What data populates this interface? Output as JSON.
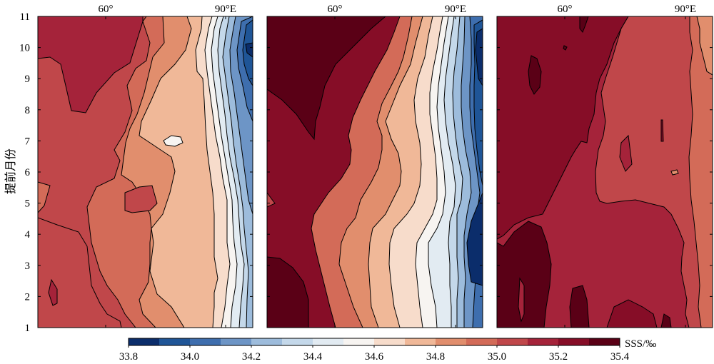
{
  "chart_data": {
    "type": "heatmap",
    "ylabel": "提前月份",
    "y_ticks": [
      1,
      2,
      3,
      4,
      5,
      6,
      7,
      8,
      9,
      10,
      11
    ],
    "ylim": [
      1,
      11
    ],
    "panels": [
      {
        "x_tick_labels": [
          "60°",
          "90°E"
        ]
      },
      {
        "x_tick_labels": [
          "60°",
          "90°E"
        ]
      },
      {
        "x_tick_labels": [
          "60°",
          "90°E"
        ]
      }
    ],
    "colorbar": {
      "label": "SSS/‰",
      "ticks": [
        "33.8",
        "34.0",
        "34.2",
        "34.4",
        "34.6",
        "34.8",
        "35.0",
        "35.2",
        "35.4"
      ],
      "range": [
        33.8,
        35.4
      ],
      "step": 0.1,
      "colors": [
        "#0b2d6b",
        "#1f5597",
        "#3e6eae",
        "#6d95c6",
        "#9dbcdc",
        "#c4d8ea",
        "#e2ebf2",
        "#f7f4f1",
        "#f7dccb",
        "#f0b898",
        "#e18e6d",
        "#d36b58",
        "#c0474a",
        "#a5233a",
        "#860d27",
        "#5a0016"
      ]
    },
    "colors": {
      "frame": "#000000",
      "contour": "#000000"
    }
  }
}
